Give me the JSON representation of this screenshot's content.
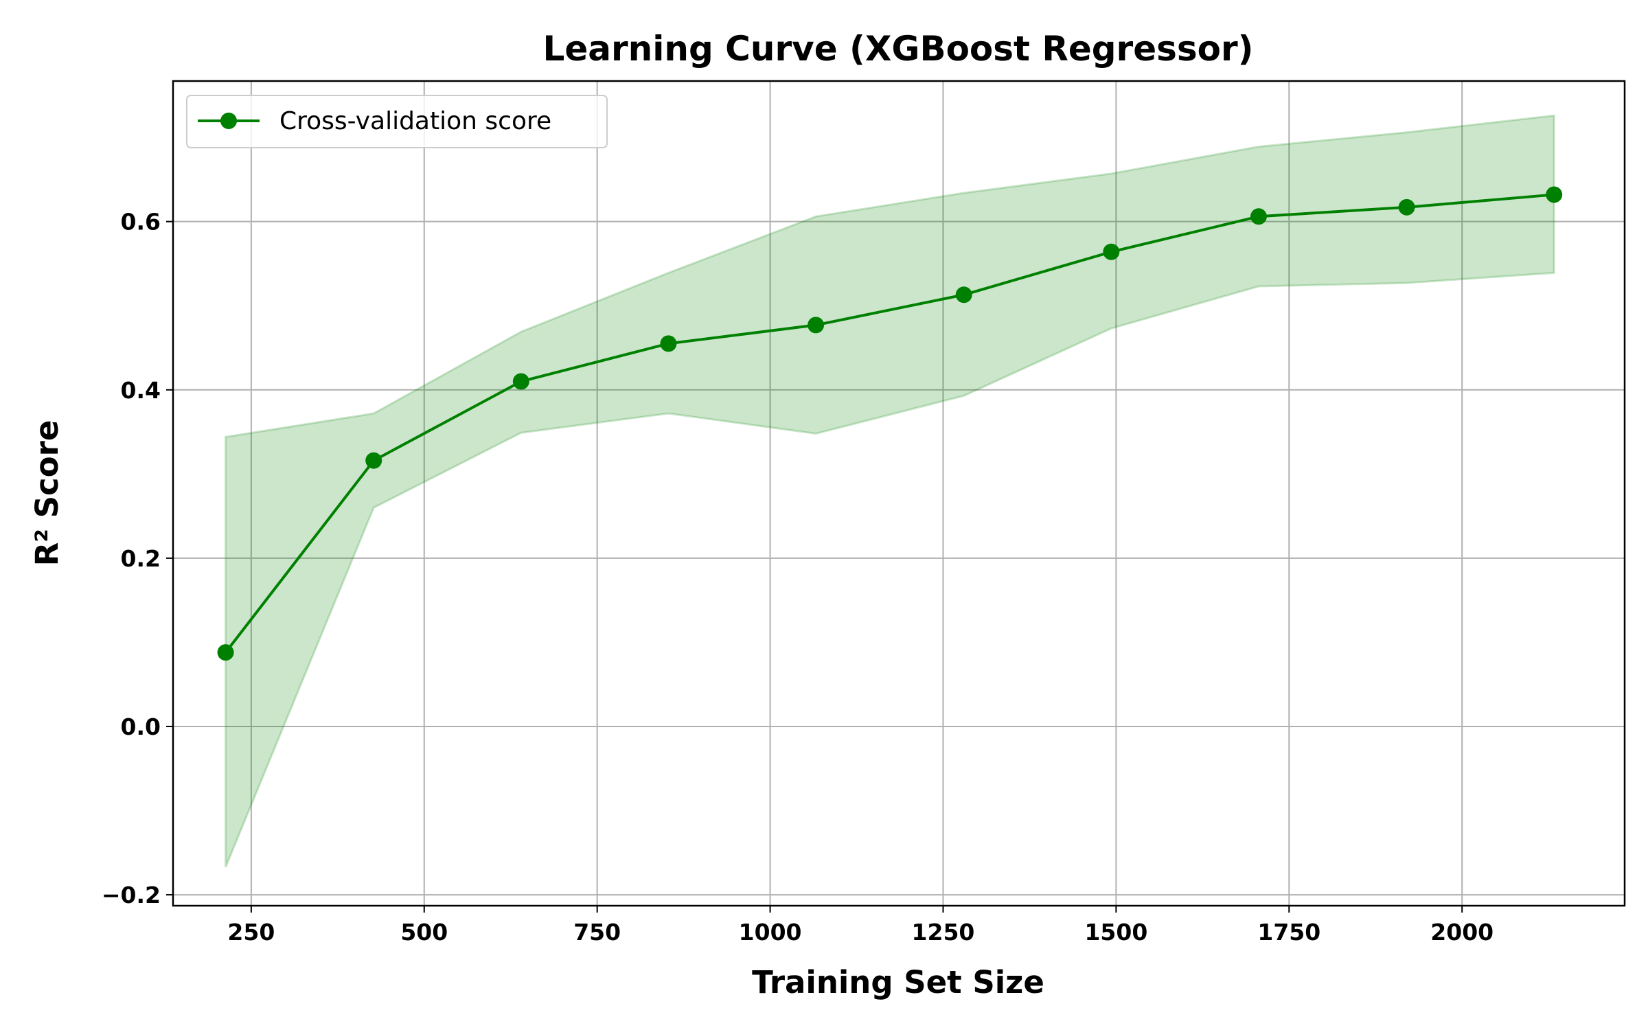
{
  "chart_data": {
    "type": "line",
    "title": "Learning Curve (XGBoost Regressor)",
    "xlabel": "Training Set Size",
    "ylabel": "R² Score",
    "xlim": [
      137,
      2235
    ],
    "ylim": [
      -0.213,
      0.767
    ],
    "xticks": [
      250,
      500,
      750,
      1000,
      1250,
      1500,
      1750,
      2000
    ],
    "xtick_labels": [
      "250",
      "500",
      "750",
      "1000",
      "1250",
      "1500",
      "1750",
      "2000"
    ],
    "yticks": [
      -0.2,
      0.0,
      0.2,
      0.4,
      0.6
    ],
    "ytick_labels": [
      "−0.2",
      "0.0",
      "0.2",
      "0.4",
      "0.6"
    ],
    "grid": true,
    "legend_position": "top-left",
    "series": [
      {
        "name": "Cross-validation score",
        "color": "#008000",
        "band_color": "#008000",
        "x": [
          213,
          427,
          640,
          853,
          1066,
          1280,
          1493,
          1706,
          1920,
          2133
        ],
        "y": [
          0.088,
          0.316,
          0.41,
          0.455,
          0.477,
          0.513,
          0.564,
          0.606,
          0.617,
          0.632
        ],
        "lower": [
          -0.167,
          0.26,
          0.349,
          0.372,
          0.348,
          0.393,
          0.473,
          0.523,
          0.527,
          0.539
        ],
        "upper": [
          0.344,
          0.372,
          0.469,
          0.539,
          0.606,
          0.634,
          0.657,
          0.689,
          0.706,
          0.726
        ]
      }
    ]
  }
}
